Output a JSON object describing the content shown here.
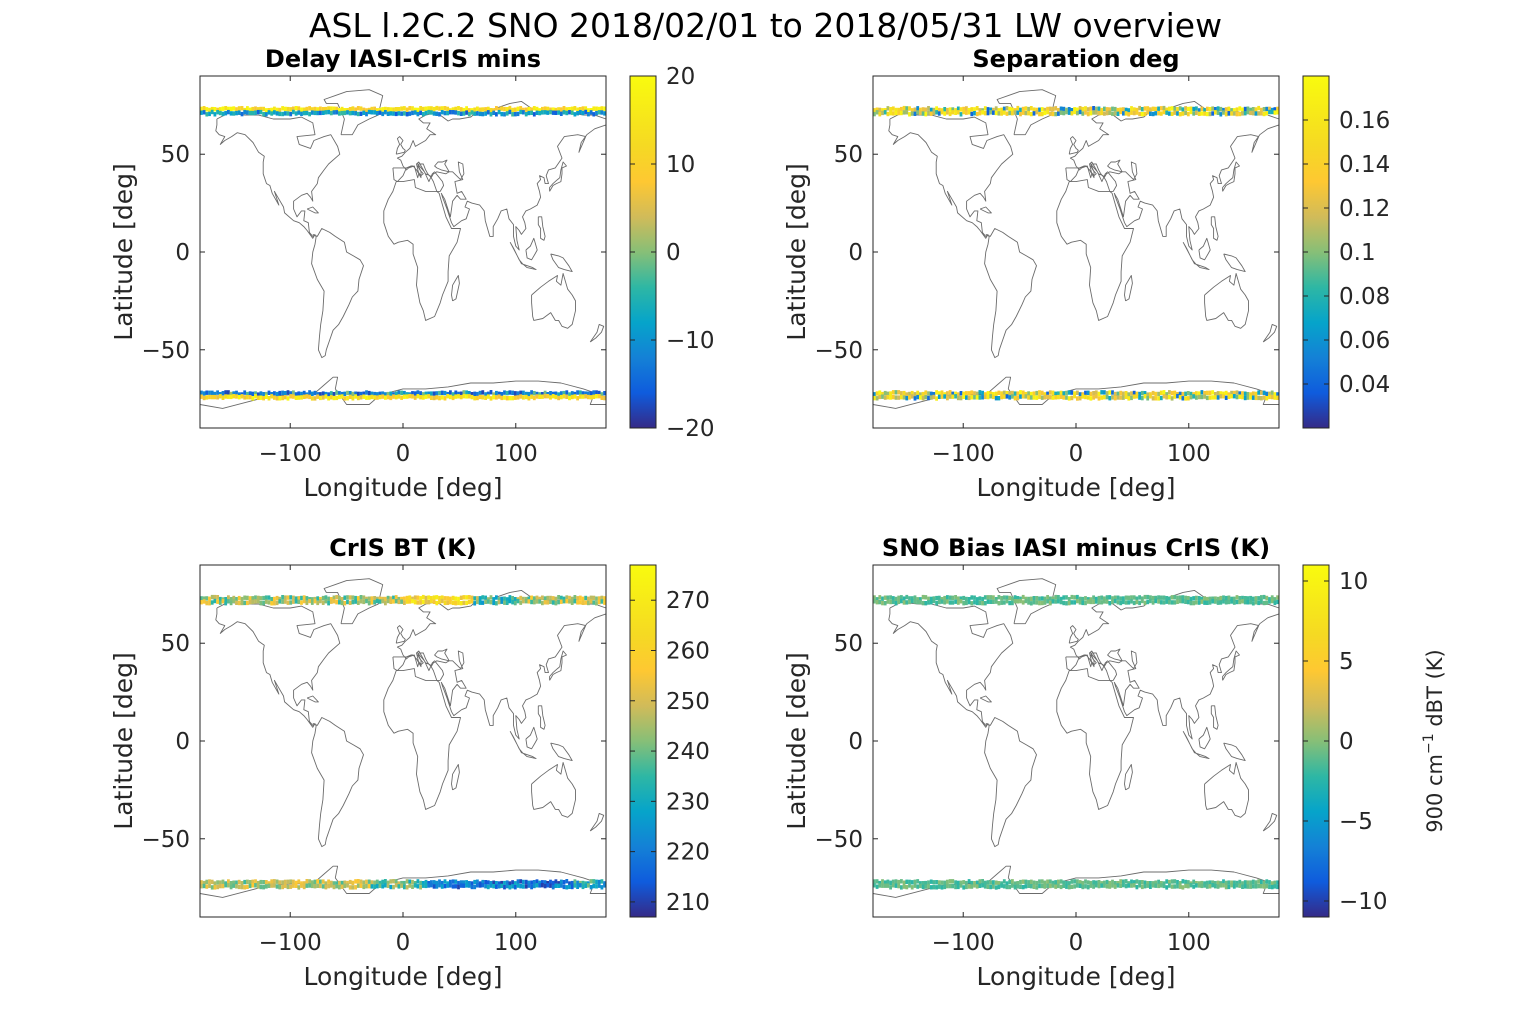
{
  "figure": {
    "title": "ASL l.2C.2 SNO 2018/02/01 to 2018/05/31 LW overview"
  },
  "chart_data": [
    {
      "type": "scatter",
      "subtype": "geographic map with colored SNO points",
      "title": "Delay IASI-CrIS mins",
      "xlabel": "Longitude [deg]",
      "ylabel": "Latitude [deg]",
      "xlim": [
        -180,
        180
      ],
      "ylim": [
        -90,
        90
      ],
      "xticks": [
        -100,
        0,
        100
      ],
      "xtick_labels": [
        "−100",
        "0",
        "100"
      ],
      "yticks": [
        -50,
        0,
        50
      ],
      "ytick_labels": [
        "−50",
        "0",
        "50"
      ],
      "colorbar": {
        "clim": [
          -20,
          20
        ],
        "ticks": [
          -20,
          -10,
          0,
          10,
          20
        ],
        "tick_labels": [
          "−20",
          "−10",
          "0",
          "10",
          "20"
        ],
        "label": ""
      },
      "bands": [
        {
          "lat": 73.0,
          "pattern": "delay_north_top"
        },
        {
          "lat": 71.0,
          "pattern": "delay_north_bottom"
        },
        {
          "lat": -72.3,
          "pattern": "delay_south_top"
        },
        {
          "lat": -74.3,
          "pattern": "delay_south_bottom"
        }
      ]
    },
    {
      "type": "scatter",
      "subtype": "geographic map with colored SNO points",
      "title": "Separation deg",
      "xlabel": "Longitude [deg]",
      "ylabel": "Latitude [deg]",
      "xlim": [
        -180,
        180
      ],
      "ylim": [
        -90,
        90
      ],
      "xticks": [
        -100,
        0,
        100
      ],
      "xtick_labels": [
        "−100",
        "0",
        "100"
      ],
      "yticks": [
        -50,
        0,
        50
      ],
      "ytick_labels": [
        "−50",
        "0",
        "50"
      ],
      "colorbar": {
        "clim": [
          0.02,
          0.18
        ],
        "ticks": [
          0.04,
          0.06,
          0.08,
          0.1,
          0.12,
          0.14,
          0.16
        ],
        "tick_labels": [
          "0.04",
          "0.06",
          "0.08",
          "0.1",
          "0.12",
          "0.14",
          "0.16"
        ],
        "label": ""
      },
      "bands": [
        {
          "lat": 73.0,
          "pattern": "sep_mixed"
        },
        {
          "lat": 71.0,
          "pattern": "sep_mixed"
        },
        {
          "lat": -72.3,
          "pattern": "sep_mixed"
        },
        {
          "lat": -74.3,
          "pattern": "sep_mixed"
        }
      ]
    },
    {
      "type": "scatter",
      "subtype": "geographic map with colored SNO points",
      "title": "CrIS BT (K)",
      "xlabel": "Longitude [deg]",
      "ylabel": "Latitude [deg]",
      "xlim": [
        -180,
        180
      ],
      "ylim": [
        -90,
        90
      ],
      "xticks": [
        -100,
        0,
        100
      ],
      "xtick_labels": [
        "−100",
        "0",
        "100"
      ],
      "yticks": [
        -50,
        0,
        50
      ],
      "ytick_labels": [
        "−50",
        "0",
        "50"
      ],
      "colorbar": {
        "clim": [
          207,
          277
        ],
        "ticks": [
          210,
          220,
          230,
          240,
          250,
          260,
          270
        ],
        "tick_labels": [
          "210",
          "220",
          "230",
          "240",
          "250",
          "260",
          "270"
        ],
        "label": ""
      },
      "bands": [
        {
          "lat": 73.0,
          "pattern": "bt_north"
        },
        {
          "lat": 71.0,
          "pattern": "bt_north"
        },
        {
          "lat": -72.3,
          "pattern": "bt_south"
        },
        {
          "lat": -74.3,
          "pattern": "bt_south"
        }
      ]
    },
    {
      "type": "scatter",
      "subtype": "geographic map with colored SNO points",
      "title": "SNO Bias IASI minus CrIS (K)",
      "xlabel": "Longitude [deg]",
      "ylabel": "Latitude [deg]",
      "xlim": [
        -180,
        180
      ],
      "ylim": [
        -90,
        90
      ],
      "xticks": [
        -100,
        0,
        100
      ],
      "xtick_labels": [
        "−100",
        "0",
        "100"
      ],
      "yticks": [
        -50,
        0,
        50
      ],
      "ytick_labels": [
        "−50",
        "0",
        "50"
      ],
      "colorbar": {
        "clim": [
          -11,
          11
        ],
        "ticks": [
          -10,
          -5,
          0,
          5,
          10
        ],
        "tick_labels": [
          "−10",
          "−5",
          "0",
          "5",
          "10"
        ],
        "label_parts": [
          "900 cm",
          "−1",
          " dBT (K)"
        ]
      },
      "bands": [
        {
          "lat": 73.0,
          "pattern": "bias_flat"
        },
        {
          "lat": 71.0,
          "pattern": "bias_flat"
        },
        {
          "lat": -72.3,
          "pattern": "bias_flat"
        },
        {
          "lat": -74.3,
          "pattern": "bias_flat"
        }
      ]
    }
  ]
}
